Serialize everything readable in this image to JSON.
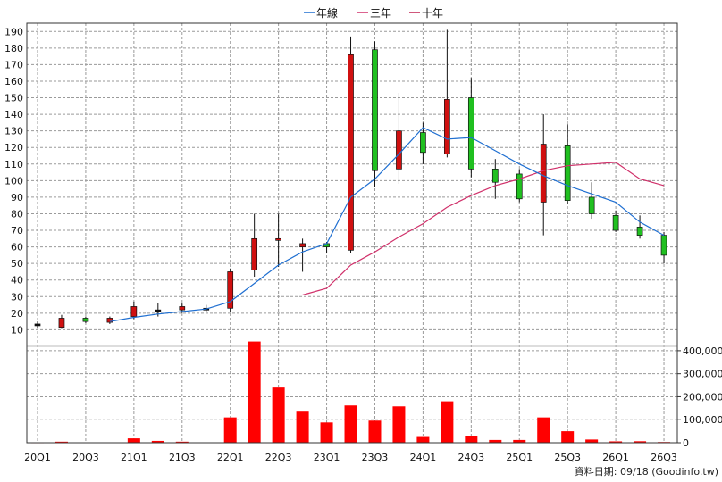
{
  "chart_data": {
    "type": "candlestick",
    "legend": {
      "position": "top-center",
      "items": [
        {
          "label": "年線",
          "color": "#1f6fd1"
        },
        {
          "label": "三年",
          "color": "#d0306a"
        },
        {
          "label": "十年",
          "color": "#c02050"
        }
      ]
    },
    "x_ticks": [
      "20Q1",
      "20Q3",
      "21Q1",
      "21Q3",
      "22Q1",
      "22Q3",
      "23Q1",
      "23Q3",
      "24Q1",
      "24Q3",
      "25Q1",
      "25Q3",
      "26Q1",
      "26Q3"
    ],
    "y_price": {
      "min": 0,
      "max": 195,
      "ticks": [
        10,
        20,
        30,
        40,
        50,
        60,
        70,
        80,
        90,
        100,
        110,
        120,
        130,
        140,
        150,
        160,
        170,
        180,
        190
      ]
    },
    "y_volume": {
      "min": 0,
      "max": 450000,
      "ticks": [
        "0",
        "100,000",
        "200,000",
        "300,000",
        "400,000"
      ],
      "tick_values": [
        0,
        100000,
        200000,
        300000,
        400000
      ]
    },
    "colors": {
      "up": "#d01010",
      "down": "#20c020",
      "flat": "#101010",
      "volume": "#ff0000",
      "grid": "#9a9a9a"
    },
    "candles": [
      {
        "q": "20Q1",
        "open": 13.5,
        "high": 15,
        "low": 11,
        "close": 13
      },
      {
        "q": "20Q2",
        "open": 11.5,
        "high": 19,
        "low": 10.5,
        "close": 17
      },
      {
        "q": "20Q3",
        "open": 17,
        "high": 18,
        "low": 14,
        "close": 15
      },
      {
        "q": "20Q4",
        "open": 14.5,
        "high": 18,
        "low": 13.5,
        "close": 17
      },
      {
        "q": "21Q1",
        "open": 18,
        "high": 27,
        "low": 16.5,
        "close": 24
      },
      {
        "q": "21Q2",
        "open": 22,
        "high": 26,
        "low": 18,
        "close": 22
      },
      {
        "q": "21Q3",
        "open": 22,
        "high": 26,
        "low": 20,
        "close": 24
      },
      {
        "q": "21Q4",
        "open": 23,
        "high": 25,
        "low": 21,
        "close": 23
      },
      {
        "q": "22Q1",
        "open": 23,
        "high": 47,
        "low": 21,
        "close": 45
      },
      {
        "q": "22Q2",
        "open": 46,
        "high": 80,
        "low": 42,
        "close": 65
      },
      {
        "q": "22Q3",
        "open": 64,
        "high": 80,
        "low": 48,
        "close": 65
      },
      {
        "q": "22Q4",
        "open": 60,
        "high": 65,
        "low": 45,
        "close": 62
      },
      {
        "q": "23Q1",
        "open": 62,
        "high": 63,
        "low": 56,
        "close": 60
      },
      {
        "q": "23Q2",
        "open": 58,
        "high": 187,
        "low": 56,
        "close": 176
      },
      {
        "q": "23Q3",
        "open": 179,
        "high": 184,
        "low": 96,
        "close": 106
      },
      {
        "q": "23Q4",
        "open": 107,
        "high": 153,
        "low": 98,
        "close": 130
      },
      {
        "q": "24Q1",
        "open": 129,
        "high": 135,
        "low": 110,
        "close": 117
      },
      {
        "q": "24Q2",
        "open": 116,
        "high": 191,
        "low": 114,
        "close": 149
      },
      {
        "q": "24Q3",
        "open": 150,
        "high": 162,
        "low": 102,
        "close": 107
      },
      {
        "q": "24Q4",
        "open": 107,
        "high": 113,
        "low": 89,
        "close": 99
      },
      {
        "q": "25Q1",
        "open": 104,
        "high": 107,
        "low": 87,
        "close": 89
      },
      {
        "q": "25Q2",
        "open": 87,
        "high": 140,
        "low": 67,
        "close": 122
      },
      {
        "q": "25Q3",
        "open": 121,
        "high": 134,
        "low": 86,
        "close": 88
      },
      {
        "q": "25Q4",
        "open": 90,
        "high": 99,
        "low": 77,
        "close": 80
      },
      {
        "q": "26Q1",
        "open": 79,
        "high": 82,
        "low": 69,
        "close": 70
      },
      {
        "q": "26Q2",
        "open": 72,
        "high": 79,
        "low": 65,
        "close": 67
      },
      {
        "q": "26Q3",
        "open": 67,
        "high": 69,
        "low": 50,
        "close": 55
      }
    ],
    "ma_1y": [
      null,
      null,
      null,
      15,
      17.5,
      19.5,
      21,
      22.5,
      27,
      38,
      49,
      57,
      62,
      90,
      101,
      116,
      132,
      125,
      126,
      118,
      110,
      103,
      97,
      92,
      87,
      75,
      67
    ],
    "ma_3y": [
      null,
      null,
      null,
      null,
      null,
      null,
      null,
      null,
      null,
      null,
      null,
      31,
      35,
      49,
      57,
      66,
      74,
      84,
      91,
      97,
      101,
      106,
      109,
      110,
      111,
      101,
      97
    ],
    "volume": [
      300,
      4500,
      400,
      400,
      19000,
      8000,
      4500,
      400,
      110000,
      440000,
      240000,
      135000,
      88000,
      162000,
      96000,
      158000,
      25000,
      180000,
      30000,
      12000,
      12000,
      110000,
      50000,
      14000,
      6000,
      6500,
      3000
    ]
  },
  "footer": {
    "source": "資料日期: 09/18  (Goodinfo.tw)"
  }
}
